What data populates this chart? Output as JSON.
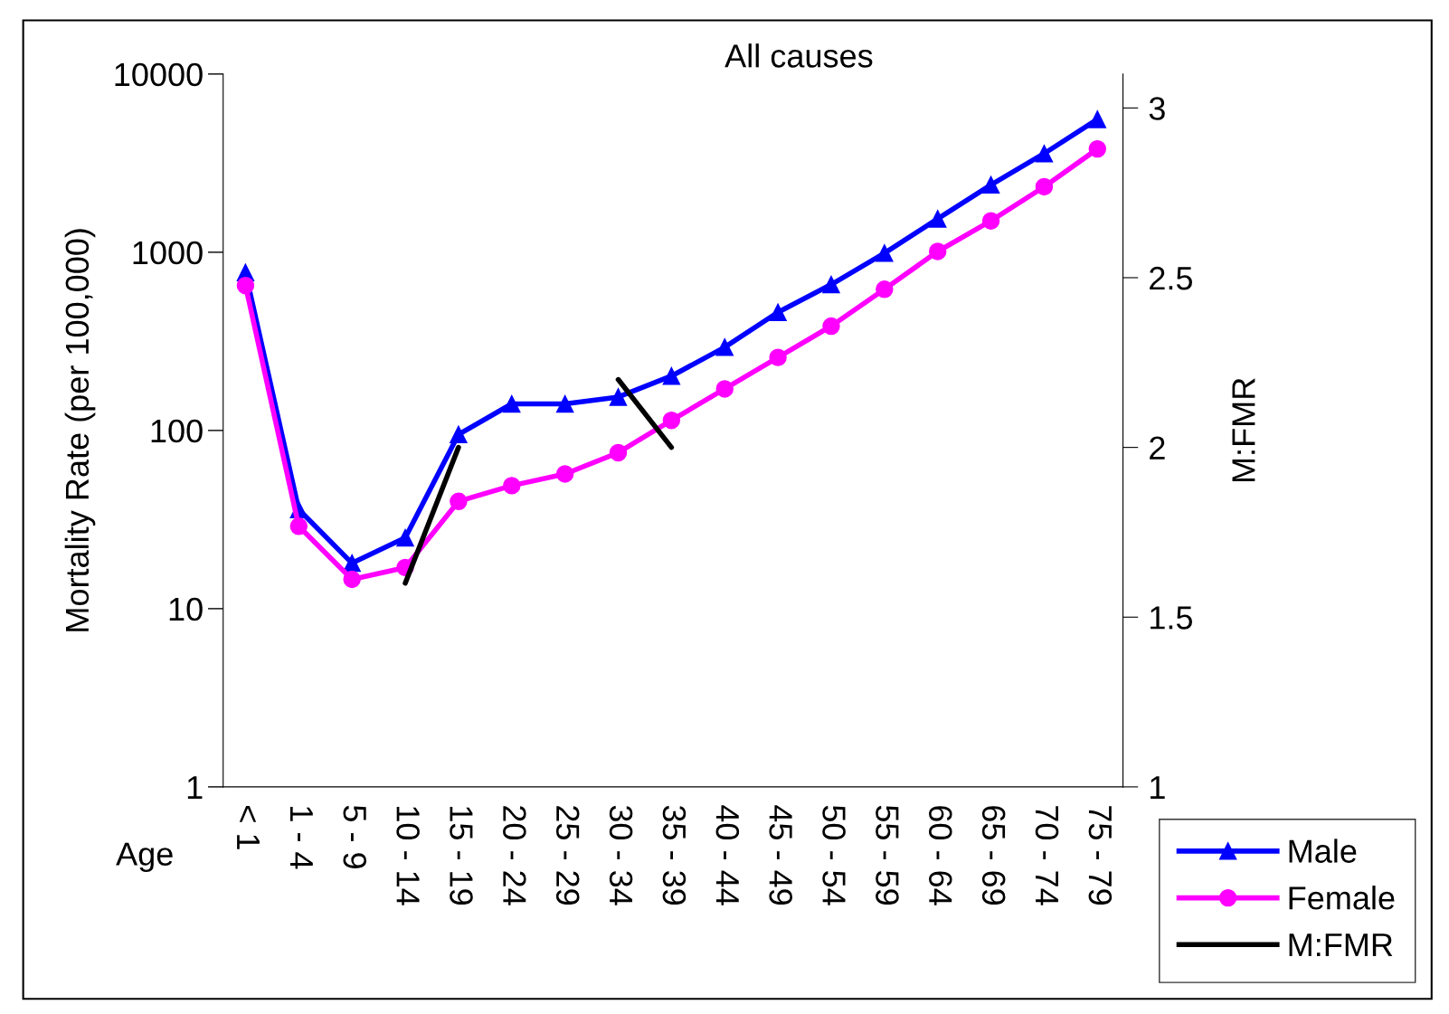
{
  "chart_data": {
    "type": "line",
    "title": "All causes",
    "xlabel": "Age",
    "ylabel": "Mortality Rate (per 100,000)",
    "y2label": "M:FMR",
    "categories": [
      "< 1",
      "1 - 4",
      "5 - 9",
      "10 - 14",
      "15 - 19",
      "20 - 24",
      "25 - 29",
      "30 - 34",
      "35 - 39",
      "40 - 44",
      "45 - 49",
      "50 - 54",
      "55 - 59",
      "60 - 64",
      "65 - 69",
      "70 - 74",
      "75 - 79"
    ],
    "series": [
      {
        "name": "Male",
        "color": "#0000ff",
        "marker": "triangle",
        "values": [
          770,
          36,
          18,
          25,
          95,
          141,
          141,
          154,
          202,
          293,
          460,
          659,
          988,
          1540,
          2390,
          3580,
          5570
        ]
      },
      {
        "name": "Female",
        "color": "#ff00ff",
        "marker": "circle",
        "values": [
          650,
          29,
          14.6,
          17,
          40,
          49,
          57,
          75,
          114,
          171,
          257,
          385,
          620,
          1010,
          1500,
          2330,
          3800
        ]
      },
      {
        "name": "M:FMR",
        "color": "#000000",
        "marker": "none",
        "axis": "y2",
        "values": [
          null,
          null,
          null,
          1.6,
          2.0,
          null,
          null,
          2.2,
          2.0,
          null,
          null,
          null,
          null,
          null,
          null,
          null,
          null
        ]
      }
    ],
    "log": "y",
    "ylim": [
      1,
      10000
    ],
    "yticks": [
      1,
      10,
      100,
      1000,
      10000
    ],
    "y2lim": [
      1,
      3.1
    ],
    "y2ticks": [
      1,
      1.5,
      2,
      2.5,
      3
    ],
    "grid": false,
    "legend": "bottom right",
    "line_style": "solid"
  }
}
